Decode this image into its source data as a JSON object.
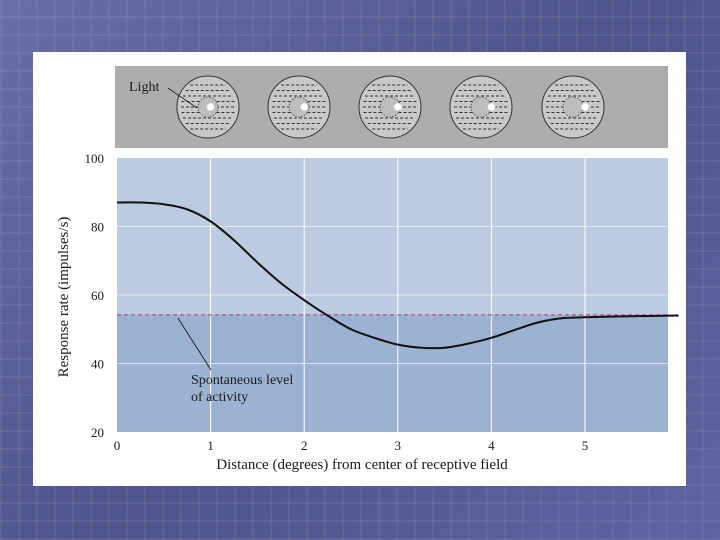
{
  "colors": {
    "slide_background": "#5b5f95",
    "panel": "#ffffff",
    "stimulus_band": "#adadad",
    "upper_region": "#bccbe2",
    "lower_region": "#9cb2d3",
    "curve": "#111111",
    "spontaneous_line": "#c0306a"
  },
  "stimulus": {
    "light_label": "Light",
    "light_spot_positions_deg": [
      1,
      2,
      3,
      4,
      5
    ]
  },
  "chart_data": {
    "type": "line",
    "title": "",
    "xlabel": "Distance (degrees) from center of receptive field",
    "ylabel": "Response rate (impulses/s)",
    "xlim": [
      0,
      6
    ],
    "ylim": [
      20,
      100
    ],
    "xticks": [
      0,
      1,
      2,
      3,
      4,
      5
    ],
    "yticks": [
      20,
      40,
      60,
      80,
      100
    ],
    "grid": "vertical lines at x ticks",
    "series": [
      {
        "name": "",
        "x": [
          0,
          0.25,
          0.5,
          0.75,
          1.0,
          1.25,
          1.5,
          1.75,
          2.0,
          2.25,
          2.5,
          2.75,
          3.0,
          3.25,
          3.5,
          3.75,
          4.0,
          4.25,
          4.5,
          4.75,
          5.0,
          5.5,
          6.0
        ],
        "y": [
          87,
          87,
          86.5,
          85,
          81.5,
          76,
          69.5,
          63.5,
          58.5,
          54,
          50,
          47.5,
          45.5,
          44.6,
          44.6,
          45.8,
          47.5,
          49.8,
          52,
          53.2,
          53.5,
          53.8,
          54
        ]
      }
    ],
    "reference_line": {
      "y": 54.2,
      "style": "dashed"
    },
    "annotation": {
      "lines": [
        "Spontaneous level",
        "of activity"
      ],
      "points_to": {
        "x": 0.65,
        "y": 54.2
      }
    },
    "legend": "none"
  }
}
